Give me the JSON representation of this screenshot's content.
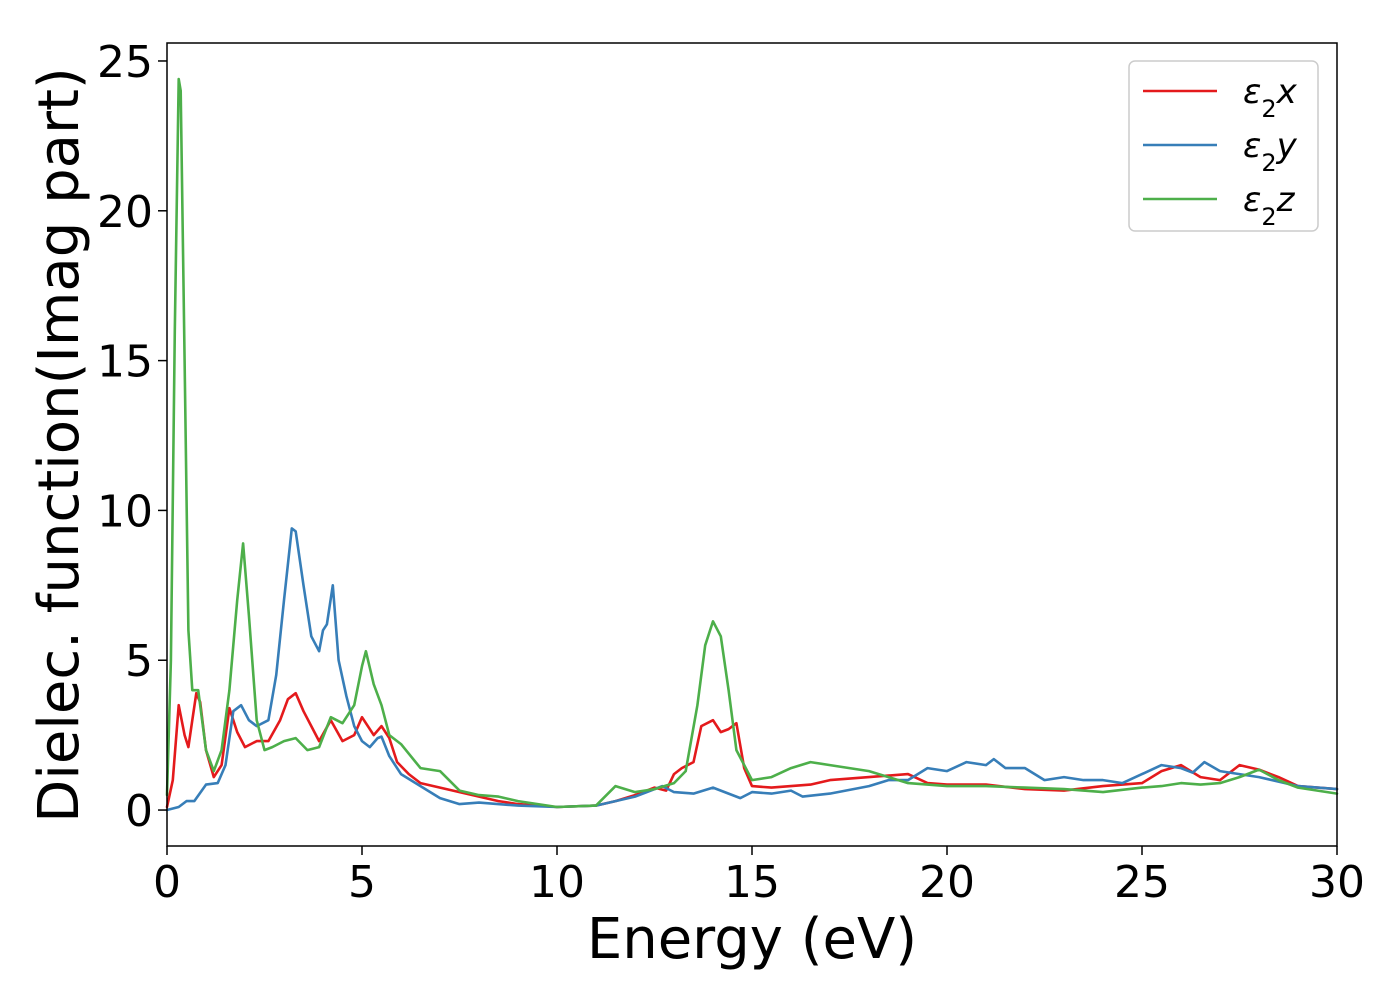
{
  "chart_data": {
    "type": "line",
    "xlabel": "Energy (eV)",
    "ylabel": "Dielec. function(Imag part)",
    "xlim": [
      0,
      30
    ],
    "ylim": [
      -1.2,
      25.6
    ],
    "xticks": [
      0,
      5,
      10,
      15,
      20,
      25,
      30
    ],
    "yticks": [
      0,
      5,
      10,
      15,
      20,
      25
    ],
    "grid": false,
    "legend_position": "top-right",
    "series": [
      {
        "name": "ε2x",
        "color": "#e41a1c",
        "points": [
          [
            0,
            0.1
          ],
          [
            0.15,
            1.0
          ],
          [
            0.3,
            3.5
          ],
          [
            0.45,
            2.5
          ],
          [
            0.55,
            2.1
          ],
          [
            0.65,
            3.0
          ],
          [
            0.75,
            3.9
          ],
          [
            0.85,
            3.6
          ],
          [
            1.0,
            2.0
          ],
          [
            1.2,
            1.1
          ],
          [
            1.4,
            1.5
          ],
          [
            1.6,
            3.4
          ],
          [
            1.8,
            2.6
          ],
          [
            2.0,
            2.1
          ],
          [
            2.3,
            2.3
          ],
          [
            2.6,
            2.3
          ],
          [
            2.9,
            3.0
          ],
          [
            3.1,
            3.7
          ],
          [
            3.3,
            3.9
          ],
          [
            3.5,
            3.3
          ],
          [
            3.7,
            2.8
          ],
          [
            3.9,
            2.3
          ],
          [
            4.2,
            3.0
          ],
          [
            4.5,
            2.3
          ],
          [
            4.8,
            2.5
          ],
          [
            5.0,
            3.1
          ],
          [
            5.3,
            2.5
          ],
          [
            5.5,
            2.8
          ],
          [
            5.7,
            2.4
          ],
          [
            5.9,
            1.6
          ],
          [
            6.2,
            1.2
          ],
          [
            6.5,
            0.9
          ],
          [
            7.0,
            0.75
          ],
          [
            7.5,
            0.6
          ],
          [
            8.0,
            0.45
          ],
          [
            8.5,
            0.3
          ],
          [
            9.0,
            0.2
          ],
          [
            10.0,
            0.1
          ],
          [
            11.0,
            0.15
          ],
          [
            11.5,
            0.3
          ],
          [
            12.0,
            0.5
          ],
          [
            12.5,
            0.75
          ],
          [
            12.8,
            0.65
          ],
          [
            13.0,
            1.2
          ],
          [
            13.2,
            1.4
          ],
          [
            13.5,
            1.6
          ],
          [
            13.7,
            2.8
          ],
          [
            14.0,
            3.0
          ],
          [
            14.2,
            2.6
          ],
          [
            14.4,
            2.7
          ],
          [
            14.6,
            2.9
          ],
          [
            14.8,
            1.4
          ],
          [
            15.0,
            0.8
          ],
          [
            15.5,
            0.75
          ],
          [
            16.0,
            0.8
          ],
          [
            16.5,
            0.85
          ],
          [
            17.0,
            1.0
          ],
          [
            18.0,
            1.1
          ],
          [
            19.0,
            1.2
          ],
          [
            19.5,
            0.9
          ],
          [
            20.0,
            0.85
          ],
          [
            21.0,
            0.85
          ],
          [
            22.0,
            0.7
          ],
          [
            23.0,
            0.65
          ],
          [
            24.0,
            0.8
          ],
          [
            25.0,
            0.9
          ],
          [
            25.5,
            1.3
          ],
          [
            26.0,
            1.5
          ],
          [
            26.5,
            1.1
          ],
          [
            27.0,
            1.0
          ],
          [
            27.5,
            1.5
          ],
          [
            28.0,
            1.35
          ],
          [
            28.5,
            1.1
          ],
          [
            29.0,
            0.8
          ],
          [
            30.0,
            0.7
          ]
        ]
      },
      {
        "name": "ε2y",
        "color": "#377eb8",
        "points": [
          [
            0,
            0.0
          ],
          [
            0.3,
            0.1
          ],
          [
            0.5,
            0.3
          ],
          [
            0.7,
            0.3
          ],
          [
            1.0,
            0.85
          ],
          [
            1.3,
            0.9
          ],
          [
            1.5,
            1.5
          ],
          [
            1.7,
            3.3
          ],
          [
            1.9,
            3.5
          ],
          [
            2.1,
            3.0
          ],
          [
            2.3,
            2.8
          ],
          [
            2.6,
            3.0
          ],
          [
            2.8,
            4.5
          ],
          [
            3.0,
            7.0
          ],
          [
            3.2,
            9.4
          ],
          [
            3.3,
            9.3
          ],
          [
            3.5,
            7.5
          ],
          [
            3.7,
            5.8
          ],
          [
            3.9,
            5.3
          ],
          [
            4.0,
            6.0
          ],
          [
            4.1,
            6.2
          ],
          [
            4.25,
            7.5
          ],
          [
            4.4,
            5.0
          ],
          [
            4.6,
            3.8
          ],
          [
            4.8,
            2.8
          ],
          [
            5.0,
            2.3
          ],
          [
            5.2,
            2.1
          ],
          [
            5.4,
            2.4
          ],
          [
            5.5,
            2.45
          ],
          [
            5.7,
            1.8
          ],
          [
            6.0,
            1.2
          ],
          [
            6.5,
            0.8
          ],
          [
            7.0,
            0.4
          ],
          [
            7.5,
            0.2
          ],
          [
            8.0,
            0.25
          ],
          [
            9.0,
            0.15
          ],
          [
            10.0,
            0.1
          ],
          [
            11.0,
            0.15
          ],
          [
            12.0,
            0.45
          ],
          [
            12.7,
            0.8
          ],
          [
            13.0,
            0.6
          ],
          [
            13.5,
            0.55
          ],
          [
            14.0,
            0.75
          ],
          [
            14.4,
            0.55
          ],
          [
            14.7,
            0.4
          ],
          [
            15.0,
            0.6
          ],
          [
            15.5,
            0.55
          ],
          [
            16.0,
            0.65
          ],
          [
            16.3,
            0.45
          ],
          [
            17.0,
            0.55
          ],
          [
            18.0,
            0.8
          ],
          [
            18.5,
            1.0
          ],
          [
            19.0,
            1.0
          ],
          [
            19.5,
            1.4
          ],
          [
            20.0,
            1.3
          ],
          [
            20.5,
            1.6
          ],
          [
            21.0,
            1.5
          ],
          [
            21.2,
            1.7
          ],
          [
            21.5,
            1.4
          ],
          [
            22.0,
            1.4
          ],
          [
            22.5,
            1.0
          ],
          [
            23.0,
            1.1
          ],
          [
            23.5,
            1.0
          ],
          [
            24.0,
            1.0
          ],
          [
            24.5,
            0.9
          ],
          [
            25.0,
            1.2
          ],
          [
            25.5,
            1.5
          ],
          [
            26.0,
            1.4
          ],
          [
            26.3,
            1.25
          ],
          [
            26.6,
            1.6
          ],
          [
            27.0,
            1.3
          ],
          [
            27.5,
            1.2
          ],
          [
            28.0,
            1.1
          ],
          [
            29.0,
            0.8
          ],
          [
            30.0,
            0.7
          ]
        ]
      },
      {
        "name": "ε2z",
        "color": "#4daf4a",
        "points": [
          [
            0,
            0.5
          ],
          [
            0.1,
            5.0
          ],
          [
            0.2,
            16.0
          ],
          [
            0.3,
            24.4
          ],
          [
            0.35,
            24.0
          ],
          [
            0.45,
            15.0
          ],
          [
            0.55,
            6.0
          ],
          [
            0.65,
            4.0
          ],
          [
            0.8,
            4.0
          ],
          [
            1.0,
            2.0
          ],
          [
            1.2,
            1.3
          ],
          [
            1.4,
            2.0
          ],
          [
            1.6,
            4.0
          ],
          [
            1.8,
            7.0
          ],
          [
            1.95,
            8.9
          ],
          [
            2.1,
            6.5
          ],
          [
            2.3,
            3.0
          ],
          [
            2.5,
            2.0
          ],
          [
            2.7,
            2.1
          ],
          [
            3.0,
            2.3
          ],
          [
            3.3,
            2.4
          ],
          [
            3.6,
            2.0
          ],
          [
            3.9,
            2.1
          ],
          [
            4.2,
            3.1
          ],
          [
            4.5,
            2.9
          ],
          [
            4.8,
            3.5
          ],
          [
            5.0,
            4.8
          ],
          [
            5.1,
            5.3
          ],
          [
            5.3,
            4.2
          ],
          [
            5.5,
            3.5
          ],
          [
            5.7,
            2.5
          ],
          [
            6.0,
            2.2
          ],
          [
            6.5,
            1.4
          ],
          [
            7.0,
            1.3
          ],
          [
            7.5,
            0.65
          ],
          [
            8.0,
            0.5
          ],
          [
            8.5,
            0.45
          ],
          [
            9.0,
            0.3
          ],
          [
            10.0,
            0.1
          ],
          [
            11.0,
            0.15
          ],
          [
            11.5,
            0.8
          ],
          [
            12.0,
            0.6
          ],
          [
            12.5,
            0.7
          ],
          [
            13.0,
            0.9
          ],
          [
            13.3,
            1.3
          ],
          [
            13.6,
            3.5
          ],
          [
            13.8,
            5.5
          ],
          [
            14.0,
            6.3
          ],
          [
            14.2,
            5.8
          ],
          [
            14.4,
            4.0
          ],
          [
            14.6,
            2.0
          ],
          [
            15.0,
            1.0
          ],
          [
            15.5,
            1.1
          ],
          [
            16.0,
            1.4
          ],
          [
            16.5,
            1.6
          ],
          [
            17.0,
            1.5
          ],
          [
            17.5,
            1.4
          ],
          [
            18.0,
            1.3
          ],
          [
            18.5,
            1.1
          ],
          [
            19.0,
            0.9
          ],
          [
            20.0,
            0.8
          ],
          [
            21.0,
            0.8
          ],
          [
            22.0,
            0.75
          ],
          [
            23.0,
            0.7
          ],
          [
            24.0,
            0.6
          ],
          [
            25.0,
            0.75
          ],
          [
            25.5,
            0.8
          ],
          [
            26.0,
            0.9
          ],
          [
            26.5,
            0.85
          ],
          [
            27.0,
            0.9
          ],
          [
            27.5,
            1.1
          ],
          [
            28.0,
            1.35
          ],
          [
            28.5,
            1.0
          ],
          [
            29.0,
            0.75
          ],
          [
            30.0,
            0.55
          ]
        ]
      }
    ]
  },
  "legend": {
    "items": [
      {
        "base": "ε",
        "sub": "2",
        "axis": "x",
        "color": "#e41a1c"
      },
      {
        "base": "ε",
        "sub": "2",
        "axis": "y",
        "color": "#377eb8"
      },
      {
        "base": "ε",
        "sub": "2",
        "axis": "z",
        "color": "#4daf4a"
      }
    ]
  }
}
